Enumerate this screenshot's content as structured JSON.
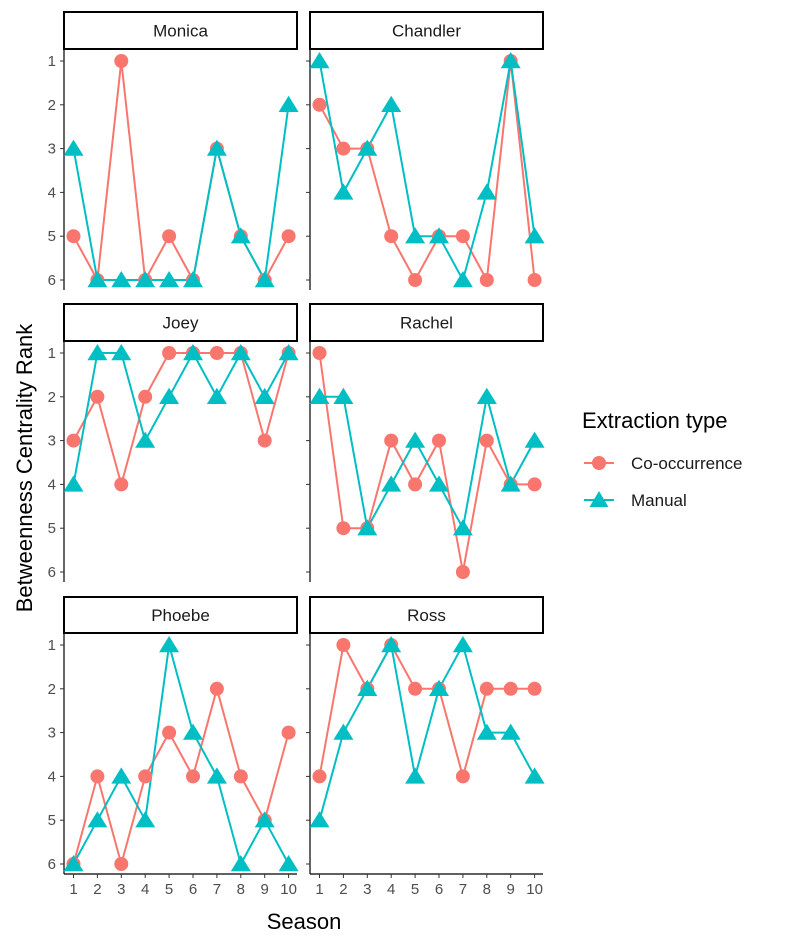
{
  "chart_data": {
    "type": "line",
    "facet_layout": "2 columns x 3 rows",
    "xlabel": "Season",
    "ylabel": "Betweenness Centrality Rank",
    "x": [
      1,
      2,
      3,
      4,
      5,
      6,
      7,
      8,
      9,
      10
    ],
    "x_tick_labels": [
      "1",
      "2",
      "3",
      "4",
      "5",
      "6",
      "7",
      "8",
      "9",
      "10"
    ],
    "y_tick_labels": [
      "1",
      "2",
      "3",
      "4",
      "5",
      "6"
    ],
    "ylim": [
      1,
      6
    ],
    "y_reversed": true,
    "legend": {
      "title": "Extraction type",
      "position": "right",
      "items": [
        {
          "name": "Co-occurrence",
          "color": "#F8766D",
          "marker": "circle"
        },
        {
          "name": "Manual",
          "color": "#00BFC4",
          "marker": "triangle"
        }
      ]
    },
    "panels": [
      {
        "name": "Monica",
        "series": [
          {
            "name": "Co-occurrence",
            "values": [
              5,
              6,
              1,
              6,
              5,
              6,
              3,
              5,
              6,
              5
            ]
          },
          {
            "name": "Manual",
            "values": [
              3,
              6,
              6,
              6,
              6,
              6,
              3,
              5,
              6,
              2
            ]
          }
        ]
      },
      {
        "name": "Chandler",
        "series": [
          {
            "name": "Co-occurrence",
            "values": [
              2,
              3,
              3,
              5,
              6,
              5,
              5,
              6,
              1,
              6
            ]
          },
          {
            "name": "Manual",
            "values": [
              1,
              4,
              3,
              2,
              5,
              5,
              6,
              4,
              1,
              5
            ]
          }
        ]
      },
      {
        "name": "Joey",
        "series": [
          {
            "name": "Co-occurrence",
            "values": [
              3,
              2,
              4,
              2,
              1,
              1,
              1,
              1,
              3,
              1
            ]
          },
          {
            "name": "Manual",
            "values": [
              4,
              1,
              1,
              3,
              2,
              1,
              2,
              1,
              2,
              1
            ]
          }
        ]
      },
      {
        "name": "Rachel",
        "series": [
          {
            "name": "Co-occurrence",
            "values": [
              1,
              5,
              5,
              3,
              4,
              3,
              6,
              3,
              4,
              4
            ]
          },
          {
            "name": "Manual",
            "values": [
              2,
              2,
              5,
              4,
              3,
              4,
              5,
              2,
              4,
              3
            ]
          }
        ]
      },
      {
        "name": "Phoebe",
        "series": [
          {
            "name": "Co-occurrence",
            "values": [
              6,
              4,
              6,
              4,
              3,
              4,
              2,
              4,
              5,
              3
            ]
          },
          {
            "name": "Manual",
            "values": [
              6,
              5,
              4,
              5,
              1,
              3,
              4,
              6,
              5,
              6
            ]
          }
        ]
      },
      {
        "name": "Ross",
        "series": [
          {
            "name": "Co-occurrence",
            "values": [
              4,
              1,
              2,
              1,
              2,
              2,
              4,
              2,
              2,
              2
            ]
          },
          {
            "name": "Manual",
            "values": [
              5,
              3,
              2,
              1,
              4,
              2,
              1,
              3,
              3,
              4
            ]
          }
        ]
      }
    ]
  }
}
